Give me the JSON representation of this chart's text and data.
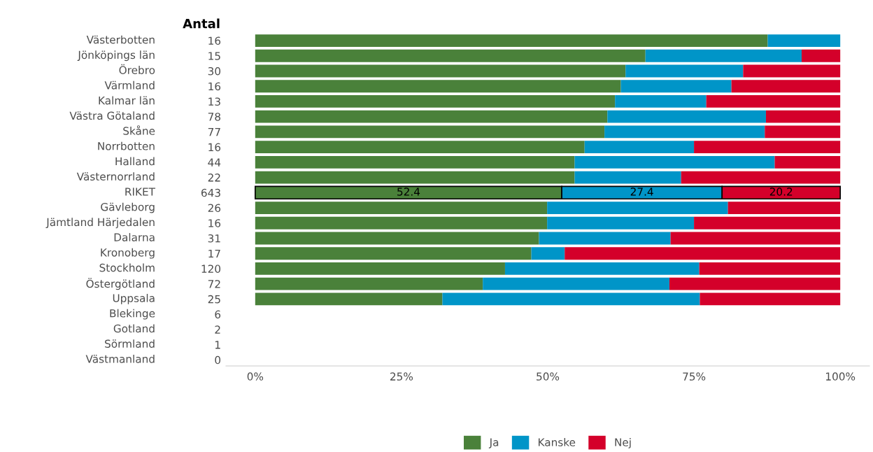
{
  "chart_data": {
    "type": "bar",
    "orientation": "horizontal",
    "stacked": true,
    "y2label": "Antal",
    "categories": [
      "Västerbotten",
      "Jönköpings län",
      "Örebro",
      "Värmland",
      "Kalmar län",
      "Västra Götaland",
      "Skåne",
      "Norrbotten",
      "Halland",
      "Västernorrland",
      "RIKET",
      "Gävleborg",
      "Jämtland Härjedalen",
      "Dalarna",
      "Kronoberg",
      "Stockholm",
      "Östergötland",
      "Uppsala",
      "Blekinge",
      "Gotland",
      "Sörmland",
      "Västmanland"
    ],
    "y2_categories": [
      "16",
      "15",
      "30",
      "16",
      "13",
      "78",
      "77",
      "16",
      "44",
      "22",
      "643",
      "26",
      "16",
      "31",
      "17",
      "120",
      "72",
      "25",
      "6",
      "2",
      "1",
      "0"
    ],
    "series": [
      {
        "name": "Ja",
        "color": "#4a813a",
        "values": [
          87.6,
          66.7,
          63.3,
          62.5,
          61.5,
          60.2,
          59.7,
          56.3,
          54.6,
          54.6,
          52.4,
          49.9,
          49.9,
          48.5,
          47.2,
          42.7,
          38.9,
          32.0,
          null,
          null,
          null,
          null
        ],
        "value_labels": [
          null,
          null,
          null,
          null,
          null,
          null,
          null,
          null,
          null,
          null,
          "52.4",
          null,
          null,
          null,
          null,
          null,
          null,
          null,
          null,
          null,
          null,
          null
        ]
      },
      {
        "name": "Kanske",
        "color": "#0095c8",
        "values": [
          12.4,
          26.7,
          20.1,
          18.9,
          15.6,
          27.1,
          27.4,
          18.7,
          34.2,
          18.2,
          27.4,
          30.9,
          25.1,
          22.5,
          5.7,
          33.2,
          31.9,
          44.0,
          null,
          null,
          null,
          null
        ],
        "value_labels": [
          null,
          null,
          null,
          null,
          null,
          null,
          null,
          null,
          null,
          null,
          "27.4",
          null,
          null,
          null,
          null,
          null,
          null,
          null,
          null,
          null,
          null,
          null
        ]
      },
      {
        "name": "Nej",
        "color": "#d4002a",
        "values": [
          0,
          6.6,
          16.6,
          18.6,
          22.9,
          12.7,
          12.9,
          25.0,
          11.2,
          27.2,
          20.2,
          19.2,
          25.0,
          29.0,
          47.1,
          24.1,
          29.2,
          24.0,
          null,
          null,
          null,
          null
        ],
        "value_labels": [
          null,
          null,
          null,
          null,
          null,
          null,
          null,
          null,
          null,
          null,
          "20.2",
          null,
          null,
          null,
          null,
          null,
          null,
          null,
          null,
          null,
          null,
          null
        ]
      }
    ],
    "xlim": [
      -5,
      105
    ],
    "xticks": [
      {
        "value": 0,
        "label": "0%"
      },
      {
        "value": 25,
        "label": "25%"
      },
      {
        "value": 50,
        "label": "50%"
      },
      {
        "value": 75,
        "label": "75%"
      },
      {
        "value": 100,
        "label": "100%"
      }
    ],
    "grid": false,
    "legend": "bottom"
  }
}
